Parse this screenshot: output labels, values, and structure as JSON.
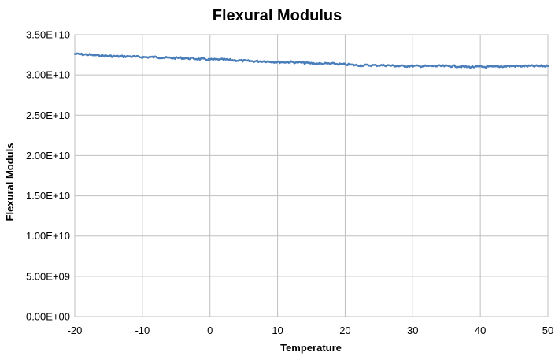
{
  "chart_data": {
    "type": "line",
    "title": "Flexural Modulus",
    "xlabel": "Temperature",
    "ylabel": "Flexural Moduls",
    "xlim": [
      -20,
      50
    ],
    "ylim": [
      0,
      35000000000
    ],
    "x_ticks": [
      -20,
      -10,
      0,
      10,
      20,
      30,
      40,
      50
    ],
    "x_tick_labels": [
      "-20",
      "-10",
      "0",
      "10",
      "20",
      "30",
      "40",
      "50"
    ],
    "y_ticks": [
      0,
      5000000000,
      10000000000,
      15000000000,
      20000000000,
      25000000000,
      30000000000,
      35000000000
    ],
    "y_tick_labels": [
      "0.00E+00",
      "5.00E+09",
      "1.00E+10",
      "1.50E+10",
      "2.00E+10",
      "2.50E+10",
      "3.00E+10",
      "3.50E+10"
    ],
    "grid": true,
    "legend": "none",
    "series": [
      {
        "color": "#4a7ebb",
        "x": [
          -20,
          -18,
          -16,
          -14,
          -12,
          -10,
          -8,
          -6,
          -4,
          -2,
          0,
          2,
          4,
          6,
          8,
          10,
          12,
          14,
          16,
          18,
          20,
          22,
          24,
          26,
          28,
          30,
          32,
          34,
          36,
          38,
          40,
          42,
          44,
          46,
          48,
          50
        ],
        "y": [
          32600000000,
          32500000000,
          32400000000,
          32300000000,
          32300000000,
          32200000000,
          32200000000,
          32100000000,
          32100000000,
          32000000000,
          31900000000,
          31900000000,
          31800000000,
          31700000000,
          31700000000,
          31600000000,
          31600000000,
          31500000000,
          31400000000,
          31400000000,
          31300000000,
          31200000000,
          31200000000,
          31200000000,
          31100000000,
          31100000000,
          31100000000,
          31100000000,
          31100000000,
          31000000000,
          31000000000,
          31000000000,
          31100000000,
          31100000000,
          31100000000,
          31100000000
        ]
      }
    ]
  }
}
